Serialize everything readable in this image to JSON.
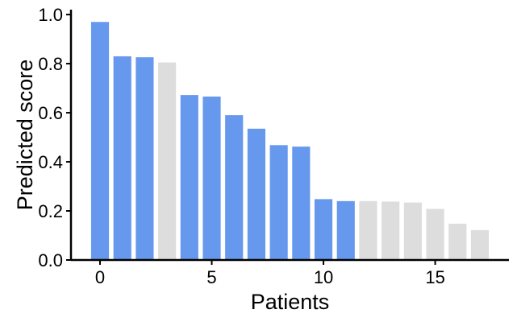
{
  "chart_data": {
    "type": "bar",
    "xlabel": "Patients",
    "ylabel": "Predicted score",
    "x": [
      0,
      1,
      2,
      3,
      4,
      5,
      6,
      7,
      8,
      9,
      10,
      11,
      12,
      13,
      14,
      15,
      16,
      17
    ],
    "values": [
      0.97,
      0.83,
      0.826,
      0.805,
      0.672,
      0.666,
      0.59,
      0.535,
      0.468,
      0.462,
      0.248,
      0.24,
      0.24,
      0.238,
      0.234,
      0.208,
      0.148,
      0.122
    ],
    "bar_colors": [
      "#6699ee",
      "#6699ee",
      "#6699ee",
      "#dddddd",
      "#6699ee",
      "#6699ee",
      "#6699ee",
      "#6699ee",
      "#6699ee",
      "#6699ee",
      "#6699ee",
      "#6699ee",
      "#dddddd",
      "#dddddd",
      "#dddddd",
      "#dddddd",
      "#dddddd",
      "#dddddd"
    ],
    "xlim": [
      -1.3,
      18.3
    ],
    "ylim": [
      0,
      1.02
    ],
    "x_ticks": [
      0,
      5,
      10,
      15
    ],
    "x_tick_labels": [
      "0",
      "5",
      "10",
      "15"
    ],
    "y_ticks": [
      0,
      0.2,
      0.4,
      0.6,
      0.8,
      1.0
    ],
    "y_tick_labels": [
      "0.0",
      "0.2",
      "0.4",
      "0.6",
      "0.8",
      "1.0"
    ],
    "grid": false,
    "legend": "none"
  }
}
